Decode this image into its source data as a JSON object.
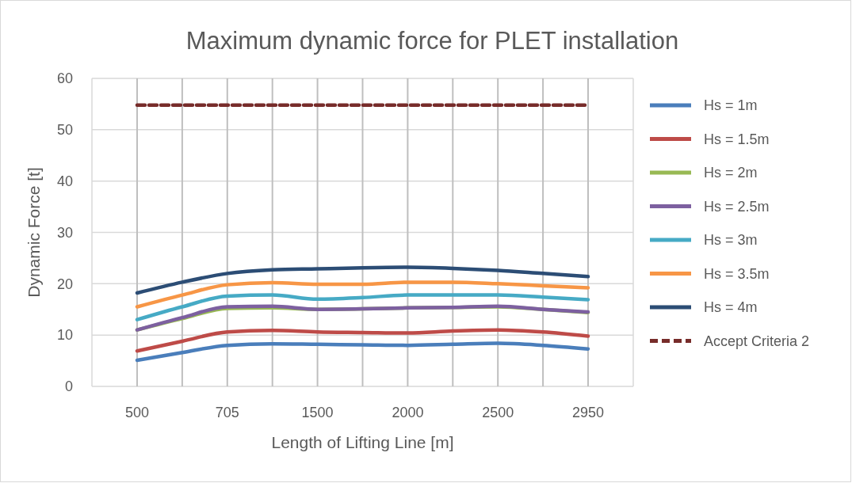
{
  "chart_data": {
    "type": "line",
    "title": "Maximum dynamic force for PLET installation",
    "xlabel": "Length of Lifting Line [m]",
    "ylabel": "Dynamic Force [t]",
    "categories": [
      "500",
      null,
      "705",
      null,
      "1500",
      null,
      "2000",
      null,
      "2500",
      null,
      "2950"
    ],
    "ylim": [
      0,
      60
    ],
    "yticks": [
      0,
      10,
      20,
      30,
      40,
      50,
      60
    ],
    "grid": true,
    "legend": "right",
    "marker": "none",
    "series": [
      {
        "name": "Hs = 1m",
        "color": "#4a7ebb",
        "values": [
          5.1,
          6.6,
          8.0,
          8.3,
          8.2,
          8.1,
          8.0,
          8.2,
          8.4,
          8.0,
          7.3
        ]
      },
      {
        "name": "Hs = 1.5m",
        "color": "#be4b48",
        "values": [
          6.9,
          8.8,
          10.6,
          10.9,
          10.6,
          10.5,
          10.4,
          10.8,
          11.0,
          10.6,
          9.8
        ]
      },
      {
        "name": "Hs = 2m",
        "color": "#98b954",
        "values": [
          11.0,
          13.2,
          15.2,
          15.3,
          15.0,
          15.1,
          15.3,
          15.4,
          15.5,
          15.0,
          14.4
        ]
      },
      {
        "name": "Hs = 2.5m",
        "color": "#7d60a0",
        "values": [
          11.0,
          13.4,
          15.5,
          15.6,
          15.0,
          15.1,
          15.3,
          15.4,
          15.6,
          15.0,
          14.5
        ]
      },
      {
        "name": "Hs = 3m",
        "color": "#46aac5",
        "values": [
          13.0,
          15.5,
          17.6,
          17.8,
          17.0,
          17.3,
          17.8,
          17.8,
          17.8,
          17.4,
          16.9
        ]
      },
      {
        "name": "Hs = 3.5m",
        "color": "#f79646",
        "values": [
          15.5,
          17.8,
          19.8,
          20.2,
          19.9,
          19.9,
          20.3,
          20.3,
          20.0,
          19.6,
          19.2
        ]
      },
      {
        "name": "Hs = 4m",
        "color": "#2c4d75",
        "values": [
          18.2,
          20.3,
          22.0,
          22.7,
          22.9,
          23.1,
          23.2,
          23.0,
          22.6,
          22.0,
          21.4
        ]
      },
      {
        "name": "Accept Criteria 2",
        "color": "#772c2a",
        "line_style": "dashed",
        "values": [
          54.8,
          54.8,
          54.8,
          54.8,
          54.8,
          54.8,
          54.8,
          54.8,
          54.8,
          54.8,
          54.8
        ]
      }
    ]
  }
}
